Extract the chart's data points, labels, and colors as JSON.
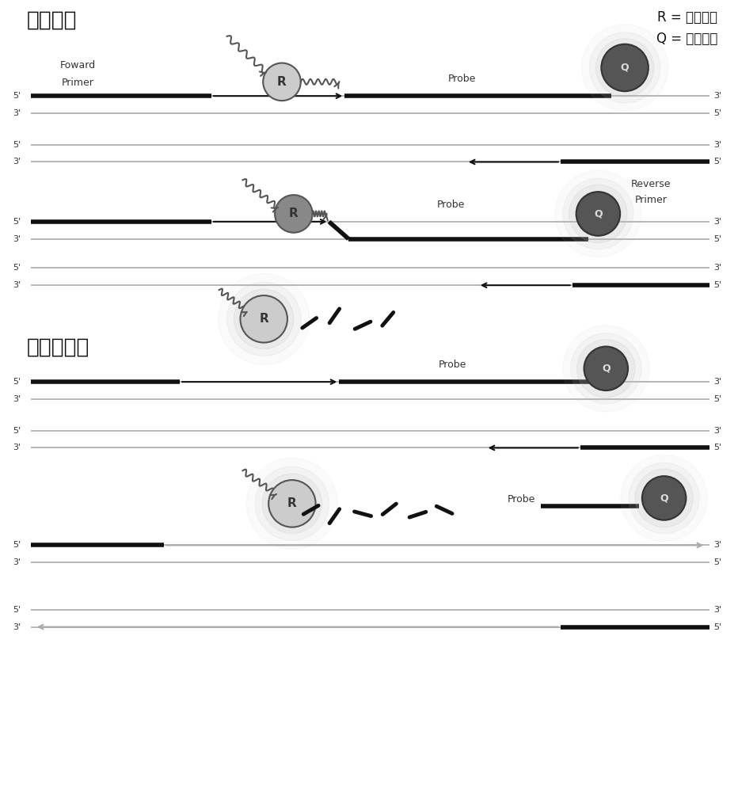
{
  "title_top": "退火阶段",
  "title_bottom": "链延伸阶段",
  "legend_R": "R = 报告基团",
  "legend_Q": "Q = 淬灭集团",
  "bg_color": "#ffffff",
  "text_color": "#000000",
  "line_color_dark": "#111111",
  "line_color_light": "#aaaaaa"
}
